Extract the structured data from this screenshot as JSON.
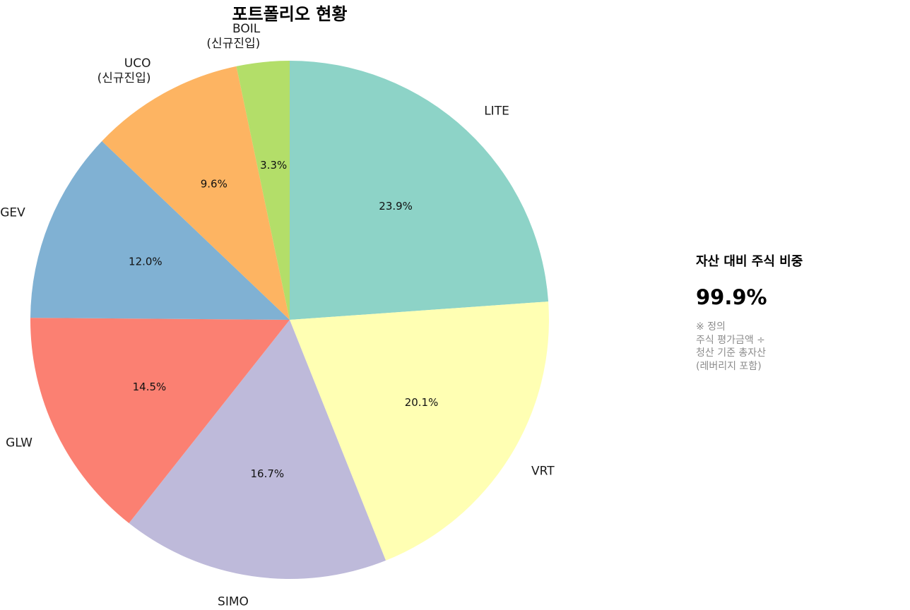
{
  "chart_data": {
    "type": "pie",
    "title": "포트폴리오 현황",
    "slices": [
      {
        "label": [
          "LITE"
        ],
        "value": 23.9,
        "pct_label": "23.9%",
        "color": "#8dd3c7"
      },
      {
        "label": [
          "VRT"
        ],
        "value": 20.1,
        "pct_label": "20.1%",
        "color": "#ffffb3"
      },
      {
        "label": [
          "SIMO"
        ],
        "value": 16.7,
        "pct_label": "16.7%",
        "color": "#bebada"
      },
      {
        "label": [
          "GLW"
        ],
        "value": 14.5,
        "pct_label": "14.5%",
        "color": "#fb8072"
      },
      {
        "label": [
          "GEV"
        ],
        "value": 12.0,
        "pct_label": "12.0%",
        "color": "#80b1d3"
      },
      {
        "label": [
          "UCO",
          "(신규진입)"
        ],
        "value": 9.6,
        "pct_label": "9.6%",
        "color": "#fdb462"
      },
      {
        "label": [
          "BOIL",
          "(신규진입)"
        ],
        "value": 3.3,
        "pct_label": "3.3%",
        "color": "#b3de69"
      }
    ],
    "start_angle_deg": 90,
    "direction": "clockwise"
  },
  "panel": {
    "title": "자산 대비 주식 비중",
    "value": "99.9%",
    "note_lines": [
      "※ 정의",
      "주식 평가금액 ÷",
      "청산 기준 총자산",
      "(레버리지 포함)"
    ]
  }
}
